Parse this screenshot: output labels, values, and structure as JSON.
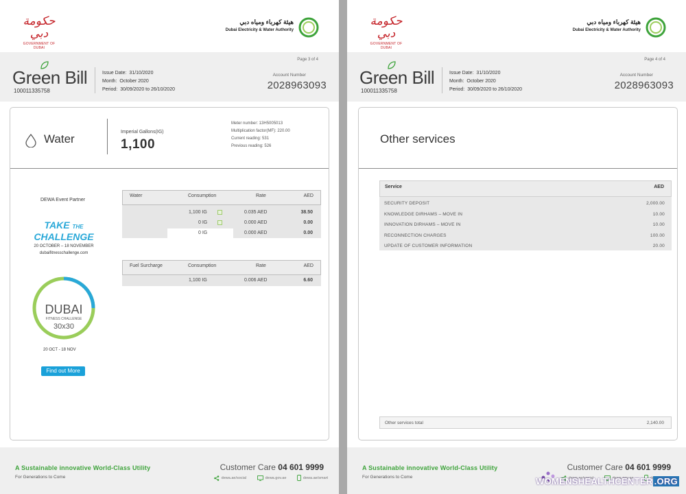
{
  "brand": {
    "gov_arabic": "حكومة دبي",
    "gov_english": "GOVERNMENT OF DUBAI",
    "dewa_arabic": "هيئة كهرباء ومياه دبي",
    "dewa_english": "Dubai Electricity & Water Authority",
    "green_color": "#3da33a",
    "accent_blue": "#1aa1d9"
  },
  "left_page": {
    "header": {
      "title": "Green Bill",
      "number": "100011335758",
      "issue_label": "Issue Date:",
      "issue_value": "31/10/2020",
      "month_label": "Month:",
      "month_value": "October 2020",
      "period_label": "Period:",
      "period_value": "30/09/2020 to 26/10/2020",
      "page": "Page 3 of 4",
      "account_label": "Account Number",
      "account_number": "2028963093"
    },
    "water": {
      "icon": "water-drop-icon",
      "title": "Water",
      "ig_label": "Imperial Gallons(IG)",
      "ig_value": "1,100",
      "meter_number": "Meter number: 13H5005013",
      "multiplication": "Multiplication factor(MF): 220.00",
      "current_reading": "Current reading: 531",
      "previous_reading": "Previous reading: 526"
    },
    "promo": {
      "partner": "DEWA Event Partner",
      "take": "TAKE",
      "the": "THE",
      "challenge": "CHALLENGE",
      "dates": "20 OCTOBER – 18 NOVEMBER",
      "site": "dubaifitnesschallenge.com",
      "dubai": "DUBAI",
      "fitness": "FITNESS CHALLENGE",
      "thirty": "30x30",
      "short_dates": "20 OCT - 18 NOV",
      "button": "Find out More"
    },
    "water_table": {
      "headers": [
        "Water",
        "Consumption",
        "Rate",
        "AED"
      ],
      "rows": [
        {
          "consumption": "1,100 IG",
          "rate": "0.035 AED",
          "aed": "38.50"
        },
        {
          "consumption": "0 IG",
          "rate": "0.000 AED",
          "aed": "0.00"
        },
        {
          "consumption": "0 IG",
          "rate": "0.000 AED",
          "aed": "0.00"
        }
      ]
    },
    "fuel_table": {
      "headers": [
        "Fuel Surcharge",
        "Consumption",
        "Rate",
        "AED"
      ],
      "rows": [
        {
          "consumption": "1,100 IG",
          "rate": "0.006 AED",
          "aed": "6.60"
        }
      ]
    }
  },
  "right_page": {
    "header": {
      "title": "Green Bill",
      "number": "100011335758",
      "issue_label": "Issue Date:",
      "issue_value": "31/10/2020",
      "month_label": "Month:",
      "month_value": "October 2020",
      "period_label": "Period:",
      "period_value": "30/09/2020 to 26/10/2020",
      "page": "Page 4 of 4",
      "account_label": "Account Number",
      "account_number": "2028963093"
    },
    "other": {
      "title": "Other services",
      "headers": [
        "Service",
        "AED"
      ],
      "rows": [
        {
          "service": "SECURITY DEPOSIT",
          "aed": "2,000.00"
        },
        {
          "service": "KNOWLEDGE DIRHAMS – MOVE IN",
          "aed": "10.00"
        },
        {
          "service": "INNOVATION DIRHAMS – MOVE IN",
          "aed": "10.00"
        },
        {
          "service": "RECONNECTION CHARGES",
          "aed": "100.00"
        },
        {
          "service": "UPDATE OF CUSTOMER INFORMATION",
          "aed": "20.00"
        }
      ],
      "total_label": "Other services total",
      "total_value": "2,140.00"
    }
  },
  "footer": {
    "tagline": "A Sustainable innovative World-Class Utility",
    "sub": "For Generations to Come",
    "care_label": "Customer Care",
    "care_number": "04 601 9999",
    "links": [
      "dewa.ae/social",
      "dewa.gov.ae",
      "dewa.ae/smart"
    ]
  },
  "watermark": {
    "text": "WOMENSHEALTHCENTER",
    "org": ".ORG"
  }
}
